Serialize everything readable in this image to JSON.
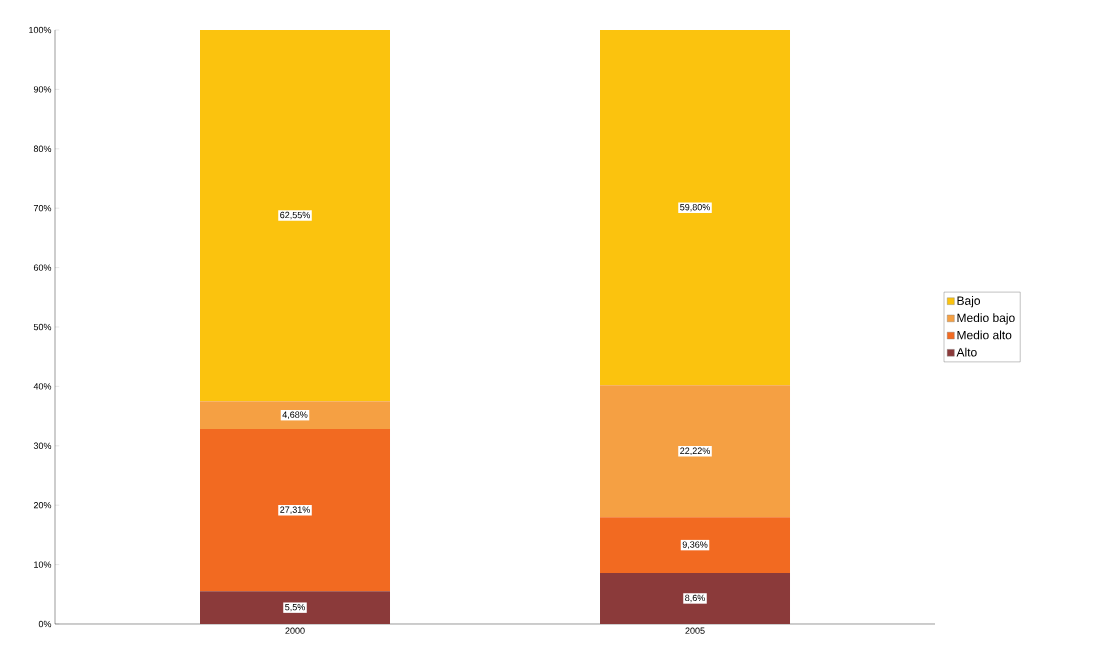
{
  "chart_data": {
    "type": "bar",
    "stacked": true,
    "categories": [
      "2000",
      "2005"
    ],
    "series": [
      {
        "name": "Alto",
        "color": "#8b3a3a",
        "values": [
          5.5,
          8.6
        ],
        "value_labels": [
          "5,5%",
          "8,6%"
        ]
      },
      {
        "name": "Medio alto",
        "color": "#f26a21",
        "values": [
          27.31,
          9.36
        ],
        "value_labels": [
          "27,31%",
          "9,36%"
        ]
      },
      {
        "name": "Medio bajo",
        "color": "#f5a043",
        "values": [
          4.68,
          22.22
        ],
        "value_labels": [
          "4,68%",
          "22,22%"
        ]
      },
      {
        "name": "Bajo",
        "color": "#fbc30e",
        "values": [
          62.55,
          59.8
        ],
        "value_labels": [
          "62,55%",
          "59,80%"
        ]
      }
    ],
    "ylim": [
      0,
      100
    ],
    "yticks": [
      {
        "value": 0,
        "label": "0%"
      },
      {
        "value": 10,
        "label": "10%"
      },
      {
        "value": 20,
        "label": "20%"
      },
      {
        "value": 30,
        "label": "30%"
      },
      {
        "value": 40,
        "label": "40%"
      },
      {
        "value": 50,
        "label": "50%"
      },
      {
        "value": 60,
        "label": "60%"
      },
      {
        "value": 70,
        "label": "70%"
      },
      {
        "value": 80,
        "label": "80%"
      },
      {
        "value": 90,
        "label": "90%"
      },
      {
        "value": 100,
        "label": "100%"
      }
    ],
    "grid": false,
    "legend": "right"
  }
}
